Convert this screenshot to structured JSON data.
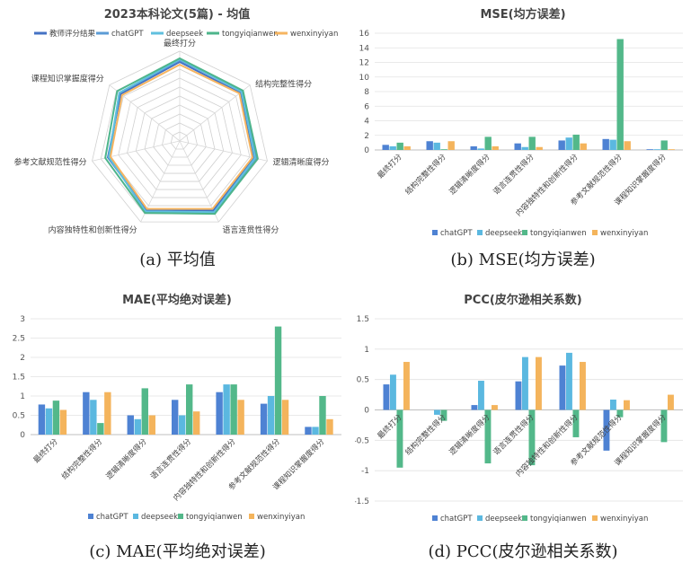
{
  "colors": {
    "教师评分结果": "#4472C4",
    "chatGPT": "#5B9BD5",
    "deepseek": "#5FBFDE",
    "tongyiqianwen": "#4DB58B",
    "wenxinyiyan": "#F6B560",
    "bar_chatGPT": "#4E82D3",
    "bar_deepseek": "#5BB8E0",
    "bar_tongyiqianwen": "#53B88A",
    "bar_wenxinyiyan": "#F4B45C"
  },
  "captions": {
    "a": "(a) 平均值",
    "b": "(b) MSE(均方误差)",
    "c": "(c) MAE(平均绝对误差)",
    "d": "(d) PCC(皮尔逊相关系数)"
  },
  "chart_data": [
    {
      "id": "a",
      "type": "radar",
      "title": "2023本科论文(5篇) - 均值",
      "categories": [
        "最终打分",
        "结构完整性得分",
        "逻辑清晰度得分",
        "语言连贯性得分",
        "内容独特性和创新性得分",
        "参考文献规范性得分",
        "课程知识掌握度得分"
      ],
      "series": [
        {
          "name": "教师评分结果",
          "values": [
            88,
            86,
            84,
            86,
            85,
            82,
            84
          ]
        },
        {
          "name": "chatGPT",
          "values": [
            90,
            89,
            87,
            89,
            88,
            80,
            86
          ]
        },
        {
          "name": "deepseek",
          "values": [
            91,
            88,
            86,
            88,
            87,
            81,
            86
          ]
        },
        {
          "name": "tongyiqianwen",
          "values": [
            92,
            90,
            89,
            90,
            89,
            85,
            89
          ]
        },
        {
          "name": "wenxinyiyan",
          "values": [
            85,
            85,
            83,
            84,
            84,
            79,
            82
          ]
        }
      ],
      "ylim": [
        0,
        100
      ]
    },
    {
      "id": "b",
      "type": "bar",
      "title": "MSE(均方误差)",
      "categories": [
        "最终打分",
        "结构完整性得分",
        "逻辑清晰度得分",
        "语言连贯性得分",
        "内容独特性和创新性得分",
        "参考文献规范性得分",
        "课程知识掌握度得分"
      ],
      "series": [
        {
          "name": "chatGPT",
          "values": [
            0.7,
            1.2,
            0.5,
            0.9,
            1.3,
            1.5,
            0.1
          ]
        },
        {
          "name": "deepseek",
          "values": [
            0.5,
            1.0,
            0.2,
            0.4,
            1.7,
            1.4,
            0.1
          ]
        },
        {
          "name": "tongyiqianwen",
          "values": [
            1.0,
            0.1,
            1.8,
            1.8,
            2.1,
            15.2,
            1.3
          ]
        },
        {
          "name": "wenxinyiyan",
          "values": [
            0.5,
            1.2,
            0.5,
            0.4,
            0.9,
            1.2,
            0.1
          ]
        }
      ],
      "ylim": [
        0,
        16
      ],
      "yticks": [
        "0",
        "2",
        "4",
        "6",
        "8",
        "10",
        "12",
        "14",
        "16"
      ]
    },
    {
      "id": "c",
      "type": "bar",
      "title": "MAE(平均绝对误差)",
      "categories": [
        "最终打分",
        "结构完整性得分",
        "逻辑清晰度得分",
        "语言连贯性得分",
        "内容独特性和创新性得分",
        "参考文献规范性得分",
        "课程知识掌握度得分"
      ],
      "series": [
        {
          "name": "chatGPT",
          "values": [
            0.78,
            1.1,
            0.5,
            0.9,
            1.1,
            0.8,
            0.2
          ]
        },
        {
          "name": "deepseek",
          "values": [
            0.68,
            0.9,
            0.4,
            0.5,
            1.3,
            1.0,
            0.2
          ]
        },
        {
          "name": "tongyiqianwen",
          "values": [
            0.88,
            0.3,
            1.2,
            1.3,
            1.3,
            2.8,
            1.0
          ]
        },
        {
          "name": "wenxinyiyan",
          "values": [
            0.64,
            1.1,
            0.5,
            0.6,
            0.9,
            0.9,
            0.4
          ]
        }
      ],
      "ylim": [
        0,
        3
      ],
      "yticks": [
        "0",
        "0.5",
        "1",
        "1.5",
        "2",
        "2.5",
        "3"
      ]
    },
    {
      "id": "d",
      "type": "bar",
      "title": "PCC(皮尔逊相关系数)",
      "categories": [
        "最终打分",
        "结构完整性得分",
        "逻辑清晰度得分",
        "语言连贯性得分",
        "内容独特性和创新性得分",
        "参考文献规范性得分",
        "课程知识掌握度得分"
      ],
      "series": [
        {
          "name": "chatGPT",
          "values": [
            0.42,
            0.0,
            0.08,
            0.47,
            0.73,
            -0.67,
            0.0
          ]
        },
        {
          "name": "deepseek",
          "values": [
            0.58,
            -0.08,
            0.48,
            0.87,
            0.94,
            0.17,
            0.0
          ]
        },
        {
          "name": "tongyiqianwen",
          "values": [
            -0.95,
            -0.18,
            -0.88,
            -0.91,
            -0.45,
            -0.12,
            -0.53
          ]
        },
        {
          "name": "wenxinyiyan",
          "values": [
            0.79,
            0.0,
            0.08,
            0.87,
            0.79,
            0.16,
            0.25
          ]
        }
      ],
      "ylim": [
        -1.5,
        1.5
      ],
      "yticks": [
        "-1.5",
        "-1",
        "-0.5",
        "0",
        "0.5",
        "1",
        "1.5"
      ]
    }
  ]
}
